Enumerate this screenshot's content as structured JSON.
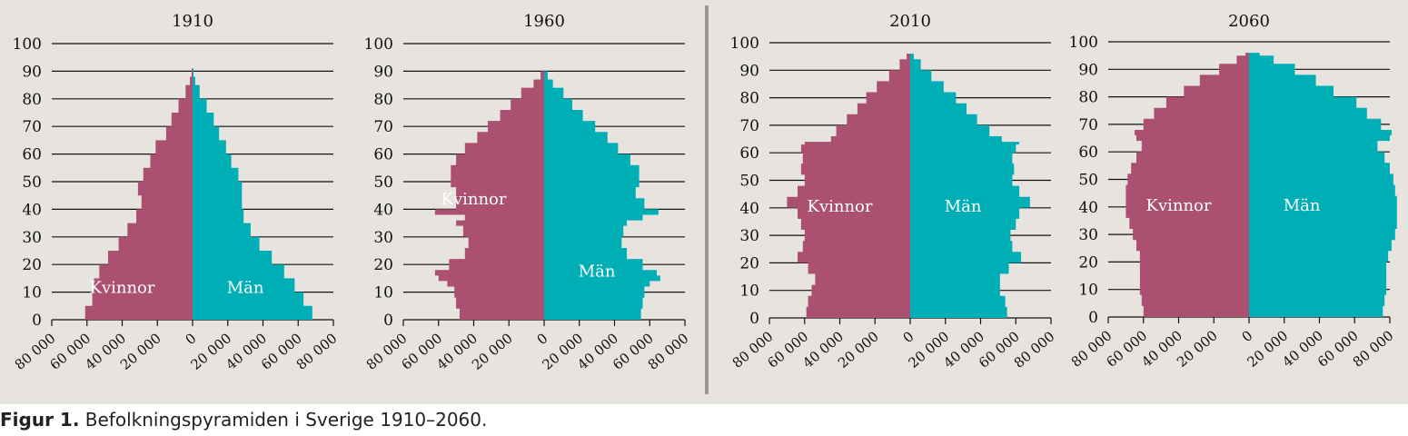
{
  "colors": {
    "kvinnor": "#ab5070",
    "man": "#00aeb6",
    "background": "#e7e4e0",
    "divider": "#9a9894",
    "axis": "#111111"
  },
  "caption": {
    "label": "Figur 1.",
    "text": " Befolkningspyramiden i Sverige 1910–2060."
  },
  "chart_data": [
    {
      "type": "population-pyramid",
      "title": "1910",
      "y_ticks": [
        "0",
        "10",
        "20",
        "30",
        "40",
        "50",
        "60",
        "70",
        "80",
        "90",
        "100"
      ],
      "x_tick_labels": [
        "80 000",
        "60 000",
        "40 000",
        "20 000",
        "0",
        "20 000",
        "40 000",
        "60 000",
        "80 000"
      ],
      "xlim": [
        -80000,
        80000
      ],
      "ylim": [
        0,
        100
      ],
      "label_women": "Kvinnor",
      "label_men": "Män",
      "label_age": 12,
      "series": [
        {
          "name": "Kvinnor",
          "ages": [
            0,
            5,
            10,
            15,
            20,
            25,
            30,
            35,
            40,
            45,
            50,
            55,
            60,
            65,
            70,
            75,
            80,
            85,
            88,
            91
          ],
          "values": [
            61000,
            57000,
            56000,
            53000,
            48000,
            42000,
            37000,
            32000,
            29000,
            31000,
            28000,
            24000,
            21000,
            15000,
            12000,
            8000,
            4000,
            1500,
            500,
            0
          ]
        },
        {
          "name": "Män",
          "ages": [
            0,
            5,
            10,
            15,
            20,
            25,
            30,
            35,
            40,
            45,
            50,
            55,
            60,
            65,
            70,
            75,
            80,
            85,
            88,
            91
          ],
          "values": [
            68000,
            63000,
            58000,
            52000,
            45000,
            38000,
            33000,
            29000,
            28000,
            28000,
            26000,
            22000,
            19000,
            15000,
            12000,
            8000,
            4000,
            1500,
            500,
            0
          ]
        }
      ]
    },
    {
      "type": "population-pyramid",
      "title": "1960",
      "y_ticks": [
        "0",
        "10",
        "20",
        "30",
        "40",
        "50",
        "60",
        "70",
        "80",
        "90",
        "100"
      ],
      "x_tick_labels": [
        "80 000",
        "60 000",
        "40 000",
        "20 000",
        "0",
        "20 000",
        "40 000",
        "60 000",
        "80 000"
      ],
      "xlim": [
        -80000,
        80000
      ],
      "ylim": [
        0,
        100
      ],
      "label_women": "Kvinnor",
      "label_men": "Män",
      "label_age_women": 44,
      "label_age_men": 18,
      "series": [
        {
          "name": "Kvinnor",
          "ages": [
            0,
            4,
            8,
            12,
            14,
            16,
            18,
            22,
            26,
            30,
            34,
            36,
            38,
            40,
            44,
            48,
            52,
            56,
            60,
            64,
            68,
            72,
            76,
            80,
            84,
            87,
            90
          ],
          "values": [
            48000,
            50000,
            51000,
            55000,
            60000,
            62000,
            54000,
            45000,
            43000,
            46000,
            50000,
            45000,
            62000,
            50000,
            50000,
            53000,
            53000,
            50000,
            45000,
            38000,
            32000,
            25000,
            19000,
            13000,
            6000,
            2000,
            0
          ]
        },
        {
          "name": "Män",
          "ages": [
            0,
            4,
            8,
            12,
            14,
            16,
            18,
            22,
            26,
            30,
            34,
            36,
            38,
            40,
            44,
            48,
            52,
            56,
            60,
            64,
            68,
            72,
            76,
            80,
            84,
            87,
            90
          ],
          "values": [
            55000,
            56000,
            57000,
            60000,
            66000,
            64000,
            56000,
            47000,
            44000,
            45000,
            47000,
            56000,
            65000,
            57000,
            52000,
            54000,
            54000,
            49000,
            42000,
            36000,
            29000,
            22000,
            16000,
            11000,
            5000,
            2000,
            0
          ]
        }
      ]
    },
    {
      "type": "population-pyramid",
      "title": "2010",
      "y_ticks": [
        "0",
        "10",
        "20",
        "30",
        "40",
        "50",
        "60",
        "70",
        "80",
        "90",
        "100"
      ],
      "x_tick_labels": [
        "80 000",
        "60 000",
        "40 000",
        "20 000",
        "0",
        "20 000",
        "40 000",
        "60 000",
        "80 000"
      ],
      "xlim": [
        -80000,
        80000
      ],
      "ylim": [
        0,
        100
      ],
      "label_women": "Kvinnor",
      "label_men": "Män",
      "label_age": 41,
      "series": [
        {
          "name": "Kvinnor",
          "ages": [
            0,
            4,
            8,
            12,
            16,
            20,
            24,
            28,
            32,
            36,
            40,
            44,
            48,
            52,
            56,
            60,
            63,
            64,
            66,
            70,
            74,
            78,
            82,
            86,
            90,
            94,
            96
          ],
          "values": [
            59000,
            58000,
            56000,
            54000,
            58000,
            64000,
            61000,
            60000,
            62000,
            64000,
            70000,
            64000,
            60000,
            62000,
            61000,
            62000,
            60000,
            45000,
            42000,
            36000,
            30000,
            25000,
            19000,
            12000,
            6000,
            2000,
            0
          ]
        },
        {
          "name": "Män",
          "ages": [
            0,
            4,
            8,
            12,
            16,
            20,
            24,
            28,
            32,
            36,
            40,
            44,
            48,
            52,
            56,
            60,
            63,
            64,
            66,
            70,
            74,
            78,
            82,
            86,
            90,
            94,
            96
          ],
          "values": [
            55000,
            54000,
            51000,
            51000,
            56000,
            63000,
            58000,
            57000,
            60000,
            62000,
            68000,
            62000,
            58000,
            59000,
            58000,
            60000,
            62000,
            52000,
            45000,
            38000,
            32000,
            26000,
            19000,
            12000,
            6000,
            2000,
            0
          ]
        }
      ]
    },
    {
      "type": "population-pyramid",
      "title": "2060",
      "y_ticks": [
        "0",
        "10",
        "20",
        "30",
        "40",
        "50",
        "60",
        "70",
        "80",
        "90",
        "100"
      ],
      "x_tick_labels": [
        "80 000",
        "60 000",
        "40 000",
        "20 000",
        "0",
        "20 000",
        "40 000",
        "60 000",
        "80 000"
      ],
      "xlim": [
        -80000,
        80000
      ],
      "ylim": [
        0,
        100
      ],
      "label_women": "Kvinnor",
      "label_men": "Män",
      "label_age": 41,
      "series": [
        {
          "name": "Kvinnor",
          "ages": [
            0,
            4,
            8,
            12,
            16,
            20,
            24,
            28,
            32,
            36,
            40,
            44,
            48,
            52,
            56,
            60,
            64,
            66,
            68,
            72,
            76,
            80,
            84,
            88,
            92,
            95,
            96
          ],
          "values": [
            60000,
            61000,
            62000,
            62000,
            62000,
            62000,
            64000,
            66000,
            68000,
            70000,
            70000,
            70000,
            69000,
            67000,
            64000,
            61000,
            64000,
            65000,
            60000,
            54000,
            47000,
            37000,
            28000,
            17000,
            7000,
            2000,
            0
          ]
        },
        {
          "name": "Män",
          "ages": [
            0,
            4,
            8,
            12,
            16,
            20,
            24,
            28,
            32,
            36,
            40,
            44,
            48,
            52,
            56,
            60,
            64,
            66,
            68,
            72,
            76,
            80,
            84,
            88,
            92,
            95,
            96
          ],
          "values": [
            76000,
            77000,
            78000,
            78000,
            78000,
            79000,
            81000,
            83000,
            84000,
            84000,
            84000,
            83000,
            82000,
            80000,
            77000,
            73000,
            80000,
            81000,
            75000,
            67000,
            61000,
            48000,
            38000,
            26000,
            14000,
            6000,
            0
          ]
        }
      ]
    }
  ]
}
